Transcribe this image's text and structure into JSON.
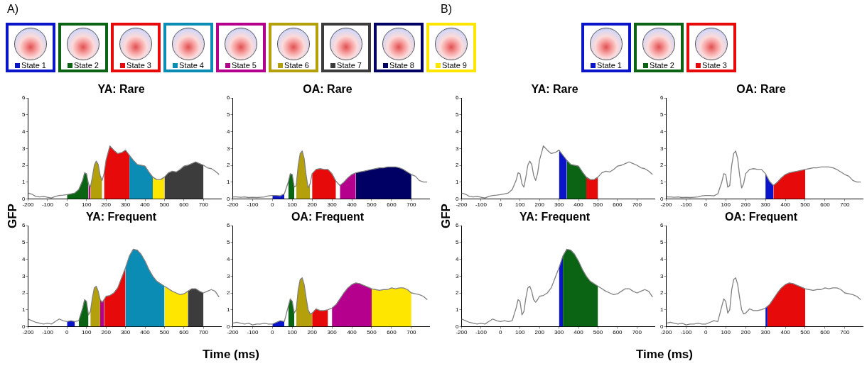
{
  "chart_data": [
    {
      "type": "line",
      "title": "YA: Rare",
      "annotations": [
        "A)"
      ],
      "ylabel": "GFP",
      "legend": "top",
      "xlim": [
        -200,
        790
      ],
      "xticks": [
        -200,
        -100,
        0,
        100,
        200,
        300,
        400,
        500,
        600,
        700
      ],
      "ylim": [
        0,
        6
      ],
      "yticks": [
        0,
        1,
        2,
        3,
        4,
        5,
        6
      ],
      "x": [
        -200,
        -180,
        -160,
        -140,
        -120,
        -100,
        -80,
        -60,
        -40,
        -20,
        0,
        20,
        40,
        60,
        80,
        90,
        100,
        110,
        120,
        130,
        140,
        150,
        160,
        170,
        180,
        190,
        200,
        220,
        240,
        260,
        280,
        300,
        320,
        340,
        360,
        380,
        400,
        420,
        440,
        460,
        480,
        500,
        520,
        540,
        560,
        580,
        600,
        620,
        640,
        660,
        680,
        700,
        720,
        740,
        760,
        780
      ],
      "series": [
        {
          "color": "#808080",
          "values": [
            0.35,
            0.28,
            0.15,
            0.12,
            0.15,
            0.1,
            0.05,
            0.15,
            0.2,
            0.22,
            0.25,
            0.3,
            0.35,
            0.55,
            1.1,
            1.55,
            1.5,
            0.9,
            0.7,
            1.3,
            2.0,
            2.25,
            2.05,
            1.4,
            1.1,
            1.5,
            2.3,
            3.15,
            2.9,
            2.7,
            2.75,
            2.9,
            2.6,
            2.3,
            2.05,
            2.0,
            1.95,
            1.6,
            1.3,
            1.15,
            1.15,
            1.3,
            1.55,
            1.65,
            1.6,
            1.75,
            1.95,
            2.0,
            2.1,
            2.2,
            2.1,
            2.0,
            1.85,
            1.8,
            1.65,
            1.45
          ]
        },
        {
          "type": "area",
          "name": "State 2",
          "color": "#0a6414",
          "x": [
            0,
            20,
            40,
            60,
            80,
            90,
            100,
            110
          ],
          "values": [
            0.25,
            0.3,
            0.35,
            0.55,
            1.1,
            1.55,
            1.5,
            0.9
          ]
        },
        {
          "type": "area",
          "name": "State 3",
          "color": "#e60a0a",
          "x": [
            190,
            200,
            220,
            240,
            260,
            280,
            300,
            320
          ],
          "values": [
            1.5,
            2.3,
            3.15,
            2.9,
            2.7,
            2.75,
            2.9,
            2.6
          ]
        },
        {
          "type": "area",
          "name": "State 4",
          "color": "#0a8cb4",
          "x": [
            320,
            340,
            360,
            380,
            400,
            420,
            440
          ],
          "values": [
            2.6,
            2.3,
            2.05,
            2.0,
            1.95,
            1.6,
            1.3
          ]
        },
        {
          "type": "area",
          "name": "State 5",
          "color": "#b4008c",
          "x": [
            110,
            120
          ],
          "values": [
            0.9,
            0.7
          ]
        },
        {
          "type": "area",
          "name": "State 6",
          "color": "#b4a00a",
          "x": [
            120,
            130,
            140,
            150,
            160,
            170,
            180
          ],
          "values": [
            0.7,
            1.3,
            2.0,
            2.25,
            2.05,
            1.4,
            1.1
          ]
        },
        {
          "type": "area",
          "name": "State 7",
          "color": "#3c3c3c",
          "x": [
            500,
            520,
            540,
            560,
            580,
            600,
            620,
            640,
            660,
            680,
            700
          ],
          "values": [
            1.3,
            1.55,
            1.65,
            1.6,
            1.75,
            1.95,
            2.0,
            2.1,
            2.2,
            2.1,
            2.0
          ]
        },
        {
          "type": "area",
          "name": "State 9",
          "color": "#ffe600",
          "x": [
            440,
            460,
            480,
            500
          ],
          "values": [
            1.3,
            1.15,
            1.15,
            1.3
          ]
        }
      ]
    },
    {
      "type": "line",
      "title": "OA: Rare",
      "legend": "top",
      "xlim": [
        -200,
        790
      ],
      "xticks": [
        -200,
        -100,
        0,
        100,
        200,
        300,
        400,
        500,
        600,
        700
      ],
      "ylim": [
        0,
        6
      ],
      "yticks": [
        0,
        1,
        2,
        3,
        4,
        5,
        6
      ],
      "x": [
        -200,
        -180,
        -160,
        -140,
        -120,
        -100,
        -80,
        -60,
        -40,
        -20,
        0,
        20,
        40,
        60,
        80,
        90,
        100,
        110,
        120,
        130,
        140,
        150,
        160,
        170,
        180,
        190,
        200,
        220,
        240,
        260,
        280,
        300,
        320,
        340,
        360,
        380,
        400,
        420,
        440,
        460,
        480,
        500,
        520,
        540,
        560,
        580,
        600,
        620,
        640,
        660,
        680,
        700,
        720,
        740,
        760,
        780
      ],
      "series": [
        {
          "color": "#808080",
          "values": [
            0.12,
            0.12,
            0.1,
            0.12,
            0.08,
            0.1,
            0.08,
            0.1,
            0.12,
            0.18,
            0.2,
            0.2,
            0.18,
            0.3,
            1.0,
            1.5,
            1.45,
            0.7,
            0.8,
            2.0,
            2.7,
            2.85,
            2.4,
            1.4,
            0.65,
            0.9,
            1.5,
            1.75,
            1.8,
            1.75,
            1.75,
            1.5,
            1.05,
            0.8,
            1.0,
            1.25,
            1.45,
            1.55,
            1.6,
            1.65,
            1.7,
            1.75,
            1.8,
            1.85,
            1.85,
            1.9,
            1.9,
            1.9,
            1.85,
            1.75,
            1.6,
            1.45,
            1.35,
            1.1,
            1.0,
            1.0
          ]
        },
        {
          "type": "area",
          "name": "State 1",
          "color": "#0a14c8",
          "x": [
            0,
            20,
            40,
            60
          ],
          "values": [
            0.2,
            0.2,
            0.18,
            0.3
          ]
        },
        {
          "type": "area",
          "color": "#0a6414",
          "x": [
            80,
            90,
            100,
            110
          ],
          "values": [
            1.0,
            1.5,
            1.45,
            0.7
          ]
        },
        {
          "type": "area",
          "color": "#b4a00a",
          "x": [
            120,
            130,
            140,
            150,
            160,
            170,
            180,
            190
          ],
          "values": [
            0.8,
            2.0,
            2.7,
            2.85,
            2.4,
            1.4,
            0.65,
            0.9
          ]
        },
        {
          "type": "area",
          "color": "#e60a0a",
          "x": [
            200,
            220,
            240,
            260,
            280,
            300,
            320
          ],
          "values": [
            1.5,
            1.75,
            1.8,
            1.75,
            1.75,
            1.5,
            1.05
          ]
        },
        {
          "type": "area",
          "color": "#b4008c",
          "x": [
            340,
            360,
            380,
            400,
            420
          ],
          "values": [
            0.8,
            1.0,
            1.25,
            1.45,
            1.55
          ]
        },
        {
          "type": "area",
          "name": "State 8",
          "color": "#000064",
          "x": [
            420,
            440,
            460,
            480,
            500,
            520,
            540,
            560,
            580,
            600,
            620,
            640,
            660,
            680,
            700
          ],
          "values": [
            1.55,
            1.6,
            1.65,
            1.7,
            1.75,
            1.8,
            1.85,
            1.85,
            1.9,
            1.9,
            1.9,
            1.85,
            1.75,
            1.6,
            1.45
          ]
        }
      ]
    },
    {
      "type": "line",
      "title": "YA: Frequent",
      "xlim": [
        -200,
        790
      ],
      "xticks": [
        -200,
        -100,
        0,
        100,
        200,
        300,
        400,
        500,
        600,
        700
      ],
      "ylim": [
        0,
        6
      ],
      "yticks": [
        0,
        1,
        2,
        3,
        4,
        5,
        6
      ],
      "x": [
        -200,
        -180,
        -160,
        -140,
        -120,
        -100,
        -80,
        -60,
        -40,
        -20,
        0,
        20,
        40,
        60,
        80,
        90,
        100,
        110,
        120,
        130,
        140,
        150,
        160,
        170,
        180,
        190,
        200,
        220,
        240,
        260,
        280,
        300,
        320,
        340,
        360,
        380,
        400,
        420,
        440,
        460,
        480,
        500,
        520,
        540,
        560,
        580,
        600,
        620,
        640,
        660,
        680,
        700,
        720,
        740,
        760,
        780
      ],
      "series": [
        {
          "color": "#808080",
          "values": [
            0.45,
            0.35,
            0.25,
            0.2,
            0.15,
            0.2,
            0.15,
            0.3,
            0.45,
            0.35,
            0.3,
            0.35,
            0.3,
            0.35,
            1.1,
            1.6,
            1.5,
            0.7,
            0.9,
            1.7,
            2.3,
            2.4,
            2.1,
            1.6,
            1.45,
            1.6,
            1.8,
            1.85,
            2.0,
            2.3,
            2.9,
            3.5,
            4.2,
            4.6,
            4.55,
            4.3,
            3.9,
            3.4,
            3.0,
            2.7,
            2.55,
            2.4,
            2.25,
            2.1,
            2.0,
            1.9,
            1.95,
            2.1,
            2.25,
            2.25,
            2.1,
            2.0,
            2.1,
            2.2,
            2.1,
            1.75
          ]
        },
        {
          "type": "area",
          "color": "#0a14c8",
          "x": [
            0,
            20,
            40
          ],
          "values": [
            0.3,
            0.35,
            0.3
          ]
        },
        {
          "type": "area",
          "color": "#0a6414",
          "x": [
            60,
            80,
            90,
            100,
            110
          ],
          "values": [
            0.35,
            1.1,
            1.6,
            1.5,
            0.7
          ]
        },
        {
          "type": "area",
          "color": "#b4a00a",
          "x": [
            120,
            130,
            140,
            150,
            160,
            170
          ],
          "values": [
            0.9,
            1.7,
            2.3,
            2.4,
            2.1,
            1.6
          ]
        },
        {
          "type": "area",
          "color": "#b4008c",
          "x": [
            170,
            180,
            190
          ],
          "values": [
            1.6,
            1.45,
            1.6
          ]
        },
        {
          "type": "area",
          "color": "#e60a0a",
          "x": [
            190,
            200,
            220,
            240,
            260,
            280,
            300
          ],
          "values": [
            1.6,
            1.8,
            1.85,
            2.0,
            2.3,
            2.9,
            3.5
          ]
        },
        {
          "type": "area",
          "color": "#0a8cb4",
          "x": [
            300,
            320,
            340,
            360,
            380,
            400,
            420,
            440,
            460,
            480,
            500
          ],
          "values": [
            3.5,
            4.2,
            4.6,
            4.55,
            4.3,
            3.9,
            3.4,
            3.0,
            2.7,
            2.55,
            2.4
          ]
        },
        {
          "type": "area",
          "color": "#ffe600",
          "x": [
            500,
            520,
            540,
            560,
            580,
            600,
            620
          ],
          "values": [
            2.4,
            2.25,
            2.1,
            2.0,
            1.9,
            1.95,
            2.1
          ]
        },
        {
          "type": "area",
          "color": "#3c3c3c",
          "x": [
            620,
            640,
            660,
            680,
            700
          ],
          "values": [
            2.1,
            2.25,
            2.25,
            2.1,
            2.0
          ]
        }
      ]
    },
    {
      "type": "line",
      "title": "OA: Frequent",
      "xlabel": "Time (ms)",
      "xlim": [
        -200,
        790
      ],
      "xticks": [
        -200,
        -100,
        0,
        100,
        200,
        300,
        400,
        500,
        600,
        700
      ],
      "ylim": [
        0,
        6
      ],
      "yticks": [
        0,
        1,
        2,
        3,
        4,
        5,
        6
      ],
      "x": [
        -200,
        -180,
        -160,
        -140,
        -120,
        -100,
        -80,
        -60,
        -40,
        -20,
        0,
        20,
        40,
        60,
        80,
        90,
        100,
        110,
        120,
        130,
        140,
        150,
        160,
        170,
        180,
        190,
        200,
        220,
        240,
        260,
        280,
        300,
        320,
        340,
        360,
        380,
        400,
        420,
        440,
        460,
        480,
        500,
        520,
        540,
        560,
        580,
        600,
        620,
        640,
        660,
        680,
        700,
        720,
        740,
        760,
        780
      ],
      "series": [
        {
          "color": "#808080",
          "values": [
            0.2,
            0.25,
            0.2,
            0.15,
            0.2,
            0.1,
            0.15,
            0.15,
            0.2,
            0.15,
            0.15,
            0.25,
            0.35,
            0.3,
            1.2,
            1.65,
            1.5,
            0.8,
            1.0,
            2.2,
            2.8,
            2.9,
            2.5,
            1.7,
            1.0,
            0.75,
            0.8,
            1.05,
            0.95,
            0.95,
            1.0,
            1.1,
            1.3,
            1.65,
            2.0,
            2.3,
            2.5,
            2.6,
            2.55,
            2.45,
            2.35,
            2.25,
            2.2,
            2.15,
            2.2,
            2.2,
            2.3,
            2.25,
            2.3,
            2.3,
            2.2,
            2.0,
            1.95,
            1.9,
            1.8,
            1.6
          ]
        },
        {
          "type": "area",
          "color": "#0a14c8",
          "x": [
            0,
            20,
            40,
            60
          ],
          "values": [
            0.15,
            0.25,
            0.35,
            0.3
          ]
        },
        {
          "type": "area",
          "color": "#0a6414",
          "x": [
            80,
            90,
            100,
            110
          ],
          "values": [
            1.2,
            1.65,
            1.5,
            0.8
          ]
        },
        {
          "type": "area",
          "color": "#b4a00a",
          "x": [
            120,
            130,
            140,
            150,
            160,
            170,
            180,
            190,
            200
          ],
          "values": [
            1.0,
            2.2,
            2.8,
            2.9,
            2.5,
            1.7,
            1.0,
            0.75,
            0.8
          ]
        },
        {
          "type": "area",
          "color": "#e60a0a",
          "x": [
            200,
            220,
            240,
            260,
            280
          ],
          "values": [
            0.8,
            1.05,
            0.95,
            0.95,
            1.0
          ]
        },
        {
          "type": "area",
          "color": "#b4008c",
          "x": [
            300,
            320,
            340,
            360,
            380,
            400,
            420,
            440,
            460,
            480,
            500
          ],
          "values": [
            1.1,
            1.3,
            1.65,
            2.0,
            2.3,
            2.5,
            2.6,
            2.55,
            2.45,
            2.35,
            2.25
          ]
        },
        {
          "type": "area",
          "color": "#ffe600",
          "x": [
            500,
            520,
            540,
            560,
            580,
            600,
            620,
            640,
            660,
            680,
            700
          ],
          "values": [
            2.25,
            2.2,
            2.15,
            2.2,
            2.2,
            2.3,
            2.25,
            2.3,
            2.3,
            2.2,
            2.0
          ]
        }
      ]
    },
    {
      "type": "line",
      "title": "YA: Rare",
      "annotations": [
        "B)"
      ],
      "ylabel": "GFP",
      "legend": "top",
      "xlim": [
        -200,
        790
      ],
      "xticks": [
        -200,
        -100,
        0,
        100,
        200,
        300,
        400,
        500,
        600,
        700
      ],
      "ylim": [
        0,
        6
      ],
      "yticks": [
        0,
        1,
        2,
        3,
        4,
        5,
        6
      ],
      "x": [
        -200,
        -180,
        -160,
        -140,
        -120,
        -100,
        -80,
        -60,
        -40,
        -20,
        0,
        20,
        40,
        60,
        80,
        90,
        100,
        110,
        120,
        130,
        140,
        150,
        160,
        170,
        180,
        190,
        200,
        220,
        240,
        260,
        280,
        300,
        320,
        340,
        360,
        380,
        400,
        420,
        440,
        460,
        480,
        500,
        520,
        540,
        560,
        580,
        600,
        620,
        640,
        660,
        680,
        700,
        720,
        740,
        760,
        780
      ],
      "series": [
        {
          "color": "#808080",
          "values": [
            0.35,
            0.28,
            0.15,
            0.12,
            0.15,
            0.1,
            0.05,
            0.15,
            0.2,
            0.22,
            0.25,
            0.3,
            0.35,
            0.55,
            1.1,
            1.55,
            1.5,
            0.9,
            0.7,
            1.3,
            2.0,
            2.25,
            2.05,
            1.4,
            1.1,
            1.5,
            2.3,
            3.15,
            2.9,
            2.7,
            2.75,
            2.9,
            2.6,
            2.3,
            2.05,
            2.0,
            1.95,
            1.6,
            1.3,
            1.15,
            1.15,
            1.3,
            1.55,
            1.65,
            1.6,
            1.75,
            1.95,
            2.0,
            2.1,
            2.2,
            2.1,
            2.0,
            1.85,
            1.8,
            1.65,
            1.45
          ]
        },
        {
          "type": "area",
          "name": "State 1",
          "color": "#0a14c8",
          "x": [
            300,
            320,
            340
          ],
          "values": [
            2.9,
            2.6,
            2.3
          ]
        },
        {
          "type": "area",
          "name": "State 2",
          "color": "#0a6414",
          "x": [
            340,
            360,
            380,
            400,
            420,
            440
          ],
          "values": [
            2.3,
            2.05,
            2.0,
            1.95,
            1.6,
            1.3
          ]
        },
        {
          "type": "area",
          "name": "State 3",
          "color": "#e60a0a",
          "x": [
            440,
            460,
            480,
            500
          ],
          "values": [
            1.3,
            1.15,
            1.15,
            1.3
          ]
        }
      ]
    },
    {
      "type": "line",
      "title": "OA: Rare",
      "xlim": [
        -200,
        790
      ],
      "xticks": [
        -200,
        -100,
        0,
        100,
        200,
        300,
        400,
        500,
        600,
        700
      ],
      "ylim": [
        0,
        6
      ],
      "yticks": [
        0,
        1,
        2,
        3,
        4,
        5,
        6
      ],
      "x": [
        -200,
        -180,
        -160,
        -140,
        -120,
        -100,
        -80,
        -60,
        -40,
        -20,
        0,
        20,
        40,
        60,
        80,
        90,
        100,
        110,
        120,
        130,
        140,
        150,
        160,
        170,
        180,
        190,
        200,
        220,
        240,
        260,
        280,
        300,
        320,
        340,
        360,
        380,
        400,
        420,
        440,
        460,
        480,
        500,
        520,
        540,
        560,
        580,
        600,
        620,
        640,
        660,
        680,
        700,
        720,
        740,
        760,
        780
      ],
      "series": [
        {
          "color": "#808080",
          "values": [
            0.12,
            0.12,
            0.1,
            0.12,
            0.08,
            0.1,
            0.08,
            0.1,
            0.12,
            0.18,
            0.2,
            0.2,
            0.18,
            0.3,
            1.0,
            1.5,
            1.45,
            0.7,
            0.8,
            2.0,
            2.7,
            2.85,
            2.4,
            1.4,
            0.65,
            0.9,
            1.5,
            1.75,
            1.8,
            1.75,
            1.75,
            1.5,
            1.05,
            0.8,
            1.0,
            1.25,
            1.45,
            1.55,
            1.6,
            1.65,
            1.7,
            1.75,
            1.8,
            1.85,
            1.85,
            1.9,
            1.9,
            1.9,
            1.85,
            1.75,
            1.6,
            1.45,
            1.35,
            1.1,
            1.0,
            1.0
          ]
        },
        {
          "type": "area",
          "color": "#0a14c8",
          "x": [
            300,
            320,
            340
          ],
          "values": [
            1.5,
            1.05,
            0.8
          ]
        },
        {
          "type": "area",
          "color": "#e60a0a",
          "x": [
            340,
            360,
            380,
            400,
            420,
            440,
            460,
            480,
            500
          ],
          "values": [
            0.8,
            1.0,
            1.25,
            1.45,
            1.55,
            1.6,
            1.65,
            1.7,
            1.75
          ]
        }
      ]
    },
    {
      "type": "line",
      "title": "YA: Frequent",
      "xlim": [
        -200,
        790
      ],
      "xticks": [
        -200,
        -100,
        0,
        100,
        200,
        300,
        400,
        500,
        600,
        700
      ],
      "ylim": [
        0,
        6
      ],
      "yticks": [
        0,
        1,
        2,
        3,
        4,
        5,
        6
      ],
      "x": [
        -200,
        -180,
        -160,
        -140,
        -120,
        -100,
        -80,
        -60,
        -40,
        -20,
        0,
        20,
        40,
        60,
        80,
        90,
        100,
        110,
        120,
        130,
        140,
        150,
        160,
        170,
        180,
        190,
        200,
        220,
        240,
        260,
        280,
        300,
        320,
        340,
        360,
        380,
        400,
        420,
        440,
        460,
        480,
        500,
        520,
        540,
        560,
        580,
        600,
        620,
        640,
        660,
        680,
        700,
        720,
        740,
        760,
        780
      ],
      "series": [
        {
          "color": "#808080",
          "values": [
            0.45,
            0.35,
            0.25,
            0.2,
            0.15,
            0.2,
            0.15,
            0.3,
            0.45,
            0.35,
            0.3,
            0.35,
            0.3,
            0.35,
            1.1,
            1.6,
            1.5,
            0.7,
            0.9,
            1.7,
            2.3,
            2.4,
            2.1,
            1.6,
            1.45,
            1.6,
            1.8,
            1.85,
            2.0,
            2.3,
            2.9,
            3.5,
            4.2,
            4.6,
            4.55,
            4.3,
            3.9,
            3.4,
            3.0,
            2.7,
            2.55,
            2.4,
            2.25,
            2.1,
            2.0,
            1.9,
            1.95,
            2.1,
            2.25,
            2.25,
            2.1,
            2.0,
            2.1,
            2.2,
            2.1,
            1.75
          ]
        },
        {
          "type": "area",
          "color": "#0a14c8",
          "x": [
            300,
            320
          ],
          "values": [
            3.5,
            4.2
          ]
        },
        {
          "type": "area",
          "color": "#0a6414",
          "x": [
            320,
            340,
            360,
            380,
            400,
            420,
            440,
            460,
            480,
            500
          ],
          "values": [
            4.2,
            4.6,
            4.55,
            4.3,
            3.9,
            3.4,
            3.0,
            2.7,
            2.55,
            2.4
          ]
        }
      ]
    },
    {
      "type": "line",
      "title": "OA: Frequent",
      "xlabel": "Time (ms)",
      "xlim": [
        -200,
        790
      ],
      "xticks": [
        -200,
        -100,
        0,
        100,
        200,
        300,
        400,
        500,
        600,
        700
      ],
      "ylim": [
        0,
        6
      ],
      "yticks": [
        0,
        1,
        2,
        3,
        4,
        5,
        6
      ],
      "x": [
        -200,
        -180,
        -160,
        -140,
        -120,
        -100,
        -80,
        -60,
        -40,
        -20,
        0,
        20,
        40,
        60,
        80,
        90,
        100,
        110,
        120,
        130,
        140,
        150,
        160,
        170,
        180,
        190,
        200,
        220,
        240,
        260,
        280,
        300,
        320,
        340,
        360,
        380,
        400,
        420,
        440,
        460,
        480,
        500,
        520,
        540,
        560,
        580,
        600,
        620,
        640,
        660,
        680,
        700,
        720,
        740,
        760,
        780
      ],
      "series": [
        {
          "color": "#808080",
          "values": [
            0.2,
            0.25,
            0.2,
            0.15,
            0.2,
            0.1,
            0.15,
            0.15,
            0.2,
            0.15,
            0.15,
            0.25,
            0.35,
            0.3,
            1.2,
            1.65,
            1.5,
            0.8,
            1.0,
            2.2,
            2.8,
            2.9,
            2.5,
            1.7,
            1.0,
            0.75,
            0.8,
            1.05,
            0.95,
            0.95,
            1.0,
            1.1,
            1.3,
            1.65,
            2.0,
            2.3,
            2.5,
            2.6,
            2.55,
            2.45,
            2.35,
            2.25,
            2.2,
            2.15,
            2.2,
            2.2,
            2.3,
            2.25,
            2.3,
            2.3,
            2.2,
            2.0,
            1.95,
            1.9,
            1.8,
            1.6
          ]
        },
        {
          "type": "area",
          "color": "#0a14c8",
          "x": [
            300,
            310
          ],
          "values": [
            1.1,
            1.2
          ]
        },
        {
          "type": "area",
          "color": "#e60a0a",
          "x": [
            310,
            320,
            340,
            360,
            380,
            400,
            420,
            440,
            460,
            480,
            500
          ],
          "values": [
            1.2,
            1.3,
            1.65,
            2.0,
            2.3,
            2.5,
            2.6,
            2.55,
            2.45,
            2.35,
            2.25
          ]
        }
      ]
    }
  ]
}
